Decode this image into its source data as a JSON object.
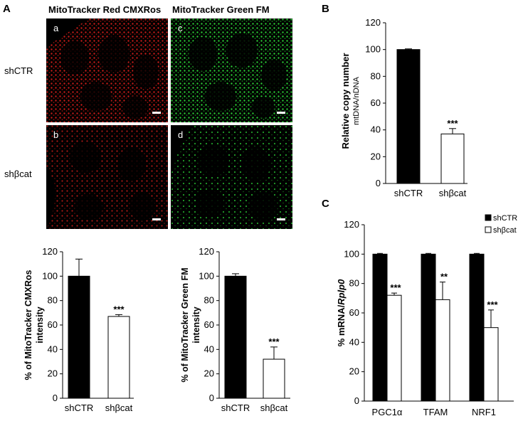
{
  "panels": {
    "A": {
      "letter": "A",
      "col_titles": [
        "MitoTracker Red CMXRos",
        "MitoTracker Green FM"
      ],
      "row_labels": [
        "shCTR",
        "shβcat"
      ],
      "subpanels": [
        "a",
        "c",
        "b",
        "d"
      ],
      "colors": {
        "red_stain": "#e8201c",
        "green_stain": "#2ee03a"
      }
    },
    "B": {
      "letter": "B"
    },
    "C": {
      "letter": "C"
    }
  },
  "chart_data": [
    {
      "id": "A-left",
      "type": "bar",
      "categories": [
        "shCTR",
        "shβcat"
      ],
      "values": [
        100,
        67
      ],
      "errors": [
        14,
        1.5
      ],
      "annotations": [
        "",
        "***"
      ],
      "ylabel": "% of MitoTracker CMXRos intensity",
      "ylim": [
        0,
        120
      ],
      "yticks": [
        0,
        20,
        40,
        60,
        80,
        100,
        120
      ],
      "bar_fills": [
        "#000000",
        "#ffffff"
      ]
    },
    {
      "id": "A-right",
      "type": "bar",
      "categories": [
        "shCTR",
        "shβcat"
      ],
      "values": [
        100,
        32
      ],
      "errors": [
        2,
        10
      ],
      "annotations": [
        "",
        "***"
      ],
      "ylabel": "% of MitoTracker Green FM intensity",
      "ylim": [
        0,
        120
      ],
      "yticks": [
        0,
        20,
        40,
        60,
        80,
        100,
        120
      ],
      "bar_fills": [
        "#000000",
        "#ffffff"
      ]
    },
    {
      "id": "B",
      "type": "bar",
      "categories": [
        "shCTR",
        "shβcat"
      ],
      "values": [
        100,
        37
      ],
      "errors": [
        0.5,
        4
      ],
      "annotations": [
        "",
        "***"
      ],
      "ylabel": "Relative copy number",
      "ylabel2": "mtDNA/nDNA",
      "ylim": [
        0,
        120
      ],
      "yticks": [
        0,
        20,
        40,
        60,
        80,
        100,
        120
      ],
      "bar_fills": [
        "#000000",
        "#ffffff"
      ]
    },
    {
      "id": "C",
      "type": "bar",
      "categories": [
        "PGC1α",
        "TFAM",
        "NRF1"
      ],
      "series": [
        {
          "name": "shCTR",
          "values": [
            100,
            100,
            100
          ],
          "errors": [
            0.5,
            0.5,
            0.5
          ],
          "annotations": [
            "",
            "",
            ""
          ],
          "fill": "#000000"
        },
        {
          "name": "shβcat",
          "values": [
            72,
            69,
            50
          ],
          "errors": [
            1.5,
            12,
            12
          ],
          "annotations": [
            "***",
            "**",
            "***"
          ],
          "fill": "#ffffff"
        }
      ],
      "ylabel": "% mRNA/",
      "ylabel_italic": "Rplp0",
      "ylim": [
        0,
        120
      ],
      "yticks": [
        0,
        20,
        40,
        60,
        80,
        100,
        120
      ],
      "legend": "top-right"
    }
  ]
}
